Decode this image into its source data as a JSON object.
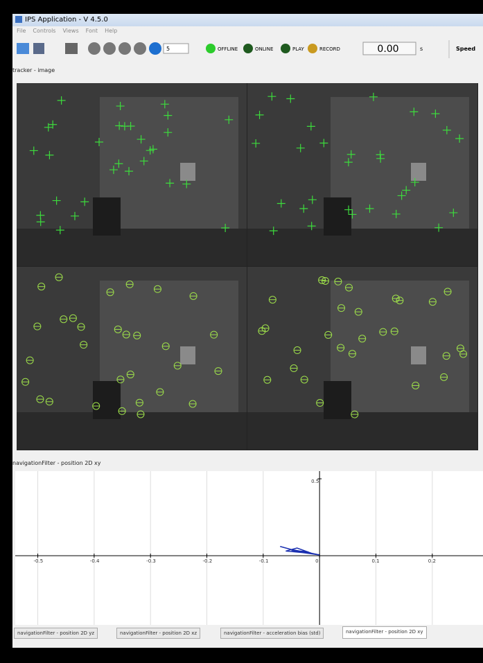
{
  "window": {
    "title": "IPS Application - V 4.5.0",
    "menu": [
      "File",
      "Controls",
      "Views",
      "Font",
      "Help"
    ]
  },
  "toolbar": {
    "spin_value": "5",
    "status": [
      "OFFLINE",
      "ONLINE",
      "PLAY",
      "RECORD"
    ],
    "time": "0.00",
    "time_unit": "s",
    "speed_label": "Speed"
  },
  "panels": {
    "image_label": "tracker - image",
    "plot_label": "navigationFilter - position 2D xy"
  },
  "plot": {
    "type": "line",
    "xlim": [
      -0.54,
      0.29
    ],
    "ylim": [
      -0.45,
      0.55
    ],
    "xticks": [
      -0.5,
      -0.4,
      -0.3,
      -0.2,
      -0.1,
      0,
      0.1,
      0.2
    ],
    "yticks": [
      0.5
    ],
    "color": "#1a2fb0",
    "trajectory": {
      "x": [
        -0.07,
        -0.05,
        -0.02,
        0,
        -0.03,
        -0.06,
        -0.04,
        -0.01,
        -0.05,
        -0.02
      ],
      "y": [
        0.06,
        0.04,
        0.02,
        0.005,
        0.02,
        0.03,
        0.05,
        0.01,
        0.035,
        0.025
      ]
    }
  },
  "tabs": [
    "navigationFilter - position 2D yz",
    "navigationFilter - position 2D xz",
    "navigationFilter - acceleration bias (std)",
    "navigationFilter - position 2D xy"
  ]
}
